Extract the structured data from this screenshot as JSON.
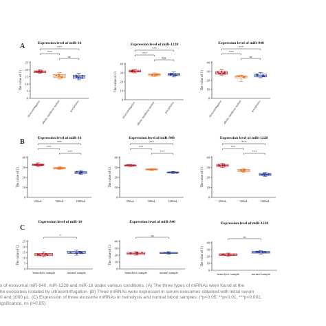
{
  "figure": {
    "panel_labels": [
      "A",
      "B",
      "C"
    ],
    "ylabel": "The value of Ct",
    "colors": {
      "red": "#b5202a",
      "orange": "#e8762b",
      "blue": "#2a3f9c",
      "axis": "#222222",
      "bracket": "#333333"
    }
  },
  "chart_data": [
    {
      "type": "box",
      "panel": "A",
      "title": "Expression level of miR-16",
      "categories": [
        "ultracentrifugation",
        "affinity membrane method",
        "precipitation"
      ],
      "ylim": [
        0,
        25
      ],
      "yticks": [
        0,
        5,
        10,
        15,
        20,
        25
      ],
      "ylabel": "The value of Ct",
      "boxes": [
        {
          "min": 17.5,
          "q1": 18.0,
          "median": 18.5,
          "q3": 19.2,
          "max": 20.0
        },
        {
          "min": 13.5,
          "q1": 14.5,
          "median": 15.6,
          "q3": 16.7,
          "max": 18.0
        },
        {
          "min": 13.0,
          "q1": 14.0,
          "median": 15.0,
          "q3": 16.2,
          "max": 17.5
        }
      ],
      "comparisons": [
        {
          "from": 0,
          "to": 2,
          "label": "***"
        },
        {
          "from": 0,
          "to": 1,
          "label": "***"
        },
        {
          "from": 1,
          "to": 2,
          "label": "ns"
        }
      ]
    },
    {
      "type": "box",
      "panel": "A",
      "title": "Expression level of miR-1228",
      "categories": [
        "ultracentrifugation",
        "affinity membrane method",
        "precipitation"
      ],
      "ylim": [
        0,
        40
      ],
      "yticks": [
        0,
        10,
        20,
        30,
        40
      ],
      "ylabel": "The value of Ct",
      "boxes": [
        {
          "min": 30.0,
          "q1": 31.0,
          "median": 32.0,
          "q3": 33.0,
          "max": 34.0
        },
        {
          "min": 26.0,
          "q1": 27.0,
          "median": 28.0,
          "q3": 29.0,
          "max": 30.0
        },
        {
          "min": 25.5,
          "q1": 27.0,
          "median": 28.0,
          "q3": 29.5,
          "max": 31.0
        }
      ],
      "comparisons": [
        {
          "from": 0,
          "to": 2,
          "label": "***"
        },
        {
          "from": 0,
          "to": 1,
          "label": "***"
        },
        {
          "from": 1,
          "to": 2,
          "label": "NS"
        }
      ]
    },
    {
      "type": "box",
      "panel": "A",
      "title": "Expression level of miR-940",
      "categories": [
        "ultracentrifugation",
        "affinity membrane method",
        "precipitation"
      ],
      "ylim": [
        0,
        40
      ],
      "yticks": [
        0,
        10,
        20,
        30,
        40
      ],
      "ylabel": "The value of Ct",
      "boxes": [
        {
          "min": 26.0,
          "q1": 27.0,
          "median": 28.5,
          "q3": 30.0,
          "max": 32.0
        },
        {
          "min": 19.0,
          "q1": 23.0,
          "median": 24.5,
          "q3": 25.0,
          "max": 26.0
        },
        {
          "min": 23.0,
          "q1": 24.0,
          "median": 25.5,
          "q3": 27.0,
          "max": 29.0
        }
      ],
      "comparisons": [
        {
          "from": 0,
          "to": 2,
          "label": "***"
        },
        {
          "from": 0,
          "to": 1,
          "label": "***"
        },
        {
          "from": 1,
          "to": 2,
          "label": "ns"
        }
      ]
    },
    {
      "type": "box",
      "panel": "B",
      "title": "Expression level of miR-16",
      "categories": [
        "250uL",
        "500uL",
        "1000uL"
      ],
      "ylim": [
        0,
        40
      ],
      "yticks": [
        0,
        10,
        20,
        30,
        40
      ],
      "ylabel": "The value of Ct",
      "boxes": [
        {
          "min": 31.0,
          "q1": 32.0,
          "median": 32.8,
          "q3": 33.5,
          "max": 34.5
        },
        {
          "min": 28.0,
          "q1": 28.5,
          "median": 29.2,
          "q3": 30.0,
          "max": 31.0
        },
        {
          "min": 23.0,
          "q1": 24.0,
          "median": 25.0,
          "q3": 26.0,
          "max": 27.0
        }
      ],
      "comparisons": [
        {
          "from": 0,
          "to": 2,
          "label": "***"
        },
        {
          "from": 0,
          "to": 1,
          "label": "***"
        },
        {
          "from": 1,
          "to": 2,
          "label": "***"
        }
      ]
    },
    {
      "type": "box",
      "panel": "B",
      "title": "Expression level of miR-940",
      "categories": [
        "250uL",
        "500uL",
        "1000uL"
      ],
      "ylim": [
        0,
        40
      ],
      "yticks": [
        0,
        10,
        20,
        30,
        40
      ],
      "ylabel": "The value of Ct",
      "boxes": [
        {
          "min": 31.0,
          "q1": 31.5,
          "median": 32.0,
          "q3": 32.5,
          "max": 33.0
        },
        {
          "min": 27.0,
          "q1": 27.5,
          "median": 28.0,
          "q3": 28.5,
          "max": 29.0
        },
        {
          "min": 24.0,
          "q1": 24.5,
          "median": 25.0,
          "q3": 25.5,
          "max": 26.0
        }
      ],
      "comparisons": [
        {
          "from": 0,
          "to": 2,
          "label": "***"
        },
        {
          "from": 0,
          "to": 1,
          "label": "***"
        },
        {
          "from": 1,
          "to": 2,
          "label": "***"
        }
      ]
    },
    {
      "type": "box",
      "panel": "B",
      "title": "Expression level of miR-1228",
      "categories": [
        "250uL",
        "500uL",
        "1000uL"
      ],
      "ylim": [
        0,
        40
      ],
      "yticks": [
        0,
        10,
        20,
        30,
        40
      ],
      "ylabel": "The value of Ct",
      "boxes": [
        {
          "min": 30.0,
          "q1": 31.0,
          "median": 32.0,
          "q3": 33.0,
          "max": 34.0
        },
        {
          "min": 25.0,
          "q1": 26.0,
          "median": 27.0,
          "q3": 28.0,
          "max": 29.0
        },
        {
          "min": 21.0,
          "q1": 22.0,
          "median": 23.0,
          "q3": 24.0,
          "max": 25.0
        }
      ],
      "comparisons": [
        {
          "from": 0,
          "to": 2,
          "label": "***"
        },
        {
          "from": 0,
          "to": 1,
          "label": "***"
        },
        {
          "from": 1,
          "to": 2,
          "label": "***"
        }
      ]
    },
    {
      "type": "box",
      "panel": "C",
      "title": "Expression level of miR-16",
      "categories": [
        "hemolytic sample",
        "normal sample"
      ],
      "ylim": [
        0,
        25
      ],
      "yticks": [
        0,
        5,
        10,
        15,
        20,
        25
      ],
      "ylabel": "The value of Ct",
      "boxes": [
        {
          "min": 11.0,
          "q1": 12.0,
          "median": 13.0,
          "q3": 14.0,
          "max": 15.5
        },
        {
          "min": 12.5,
          "q1": 14.0,
          "median": 15.0,
          "q3": 16.0,
          "max": 17.0
        }
      ],
      "comparisons": [
        {
          "from": 0,
          "to": 1,
          "label": "*"
        }
      ]
    },
    {
      "type": "box",
      "panel": "C",
      "title": "Expression level of miR-940",
      "categories": [
        "hemolytic sample",
        "normal sample"
      ],
      "ylim": [
        0,
        40
      ],
      "yticks": [
        0,
        10,
        20,
        30,
        40
      ],
      "ylabel": "The value of Ct",
      "boxes": [
        {
          "min": 20.0,
          "q1": 21.0,
          "median": 22.5,
          "q3": 24.0,
          "max": 25.0
        },
        {
          "min": 21.5,
          "q1": 22.5,
          "median": 23.0,
          "q3": 24.0,
          "max": 25.0
        }
      ],
      "comparisons": [
        {
          "from": 0,
          "to": 1,
          "label": "ns"
        }
      ]
    },
    {
      "type": "box",
      "panel": "C",
      "title": "Expression level of miR-1228",
      "categories": [
        "hemolytic sample",
        "normal sample"
      ],
      "ylim": [
        0,
        40
      ],
      "yticks": [
        0,
        10,
        20,
        30,
        40
      ],
      "ylabel": "The value of Ct",
      "boxes": [
        {
          "min": 20.0,
          "q1": 21.5,
          "median": 22.5,
          "q3": 24.0,
          "max": 25.0
        },
        {
          "min": 23.5,
          "q1": 25.0,
          "median": 26.0,
          "q3": 27.5,
          "max": 28.5
        }
      ],
      "comparisons": [
        {
          "from": 0,
          "to": 1,
          "label": "ns"
        }
      ]
    }
  ],
  "caption": {
    "lines": [
      "s of exosomal miR-940, miR-1228 and miR-16 under various conditions. (A) The three types of miRNAs were found at the",
      "he exosomes isolated by ultracentrifugation. (B) Three miRNAs were expressed in serum exosomes obtained with initial serum",
      "0 and 1000 μL. (C) Expression of three exosome miRNAs in hemolysis and normal blood samples. (*p<0.05, **p<0.01, ***p<0.001,",
      "ignificance, ns p>0.05)."
    ]
  }
}
